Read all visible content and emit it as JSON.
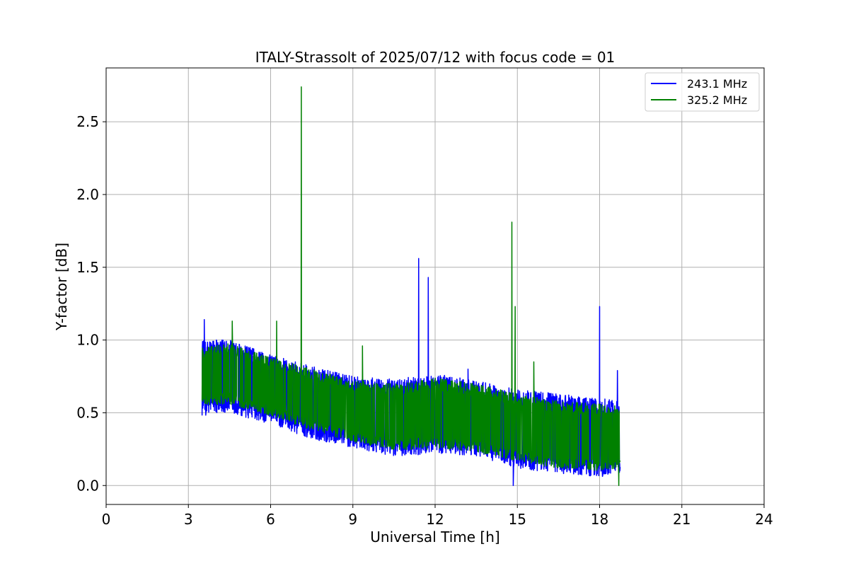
{
  "chart_data": {
    "type": "line",
    "title": "ITALY-Strassolt of 2025/07/12 with focus code = 01",
    "xlabel": "Universal Time [h]",
    "ylabel": "Y-factor [dB]",
    "xlim": [
      0,
      24
    ],
    "ylim": [
      -0.13,
      2.87
    ],
    "xticks": [
      0,
      3,
      6,
      9,
      12,
      15,
      18,
      21,
      24
    ],
    "xtick_labels": [
      "0",
      "3",
      "6",
      "9",
      "12",
      "15",
      "18",
      "21",
      "24"
    ],
    "yticks": [
      0.0,
      0.5,
      1.0,
      1.5,
      2.0,
      2.5
    ],
    "ytick_labels": [
      "0.0",
      "0.5",
      "1.0",
      "1.5",
      "2.0",
      "2.5"
    ],
    "grid": true,
    "legend_position": "top-right",
    "x_range": [
      3.5,
      18.75
    ],
    "series": [
      {
        "name": "243.1 MHz",
        "color": "#0000ff",
        "envelope": {
          "x": [
            3.5,
            4.5,
            6,
            7.5,
            9,
            10.5,
            12,
            13.5,
            15,
            16.5,
            18,
            18.75
          ],
          "low": [
            0.48,
            0.5,
            0.42,
            0.32,
            0.26,
            0.2,
            0.22,
            0.2,
            0.12,
            0.08,
            0.06,
            0.08
          ],
          "high": [
            1.0,
            1.0,
            0.9,
            0.82,
            0.75,
            0.73,
            0.77,
            0.72,
            0.66,
            0.63,
            0.6,
            0.58
          ]
        },
        "spikes": [
          {
            "x": 3.58,
            "y": 1.14
          },
          {
            "x": 11.4,
            "y": 1.56
          },
          {
            "x": 11.75,
            "y": 1.43
          },
          {
            "x": 13.2,
            "y": 0.8
          },
          {
            "x": 18.0,
            "y": 1.23
          },
          {
            "x": 18.65,
            "y": 0.79
          },
          {
            "x": 14.85,
            "y": 0.0
          }
        ]
      },
      {
        "name": "325.2 MHz",
        "color": "#008000",
        "envelope": {
          "x": [
            3.5,
            4.5,
            6,
            7.5,
            9,
            10.5,
            12,
            13.5,
            15,
            16.5,
            18,
            18.75
          ],
          "low": [
            0.55,
            0.56,
            0.48,
            0.38,
            0.3,
            0.24,
            0.25,
            0.23,
            0.16,
            0.12,
            0.1,
            0.12
          ],
          "high": [
            0.95,
            0.98,
            0.88,
            0.8,
            0.72,
            0.7,
            0.74,
            0.7,
            0.63,
            0.58,
            0.56,
            0.55
          ]
        },
        "spikes": [
          {
            "x": 4.6,
            "y": 1.13
          },
          {
            "x": 6.22,
            "y": 1.13
          },
          {
            "x": 7.12,
            "y": 2.74
          },
          {
            "x": 9.35,
            "y": 0.96
          },
          {
            "x": 14.8,
            "y": 1.81
          },
          {
            "x": 14.92,
            "y": 1.23
          },
          {
            "x": 15.6,
            "y": 0.85
          },
          {
            "x": 18.7,
            "y": 0.0
          }
        ]
      }
    ]
  }
}
